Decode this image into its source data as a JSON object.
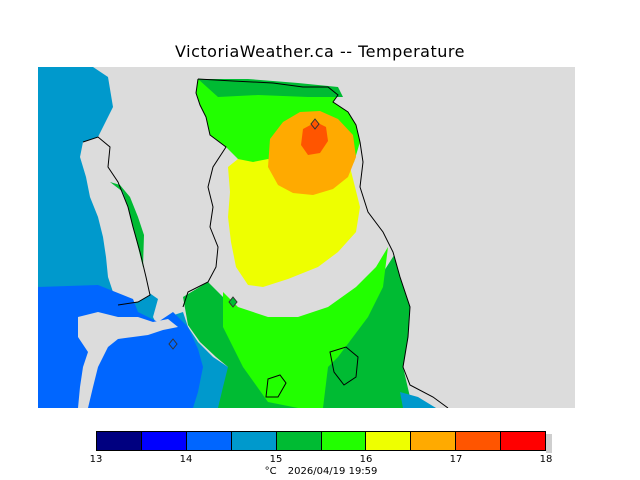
{
  "title": "VictoriaWeather.ca -- Temperature",
  "map": {
    "background_color": "#dcdcdc",
    "stations": [
      "station-marker",
      "station-marker",
      "station-marker"
    ]
  },
  "legend": {
    "ticks": [
      "13",
      "14",
      "15",
      "16",
      "17",
      "18"
    ],
    "colors": [
      "#000080",
      "#0000ff",
      "#0066ff",
      "#0099cc",
      "#00bb33",
      "#22ff00",
      "#eeff00",
      "#ffaa00",
      "#ff5500",
      "#ff0000"
    ]
  },
  "footer": {
    "unit": "°C",
    "timestamp": "2026/04/19 19:59"
  }
}
